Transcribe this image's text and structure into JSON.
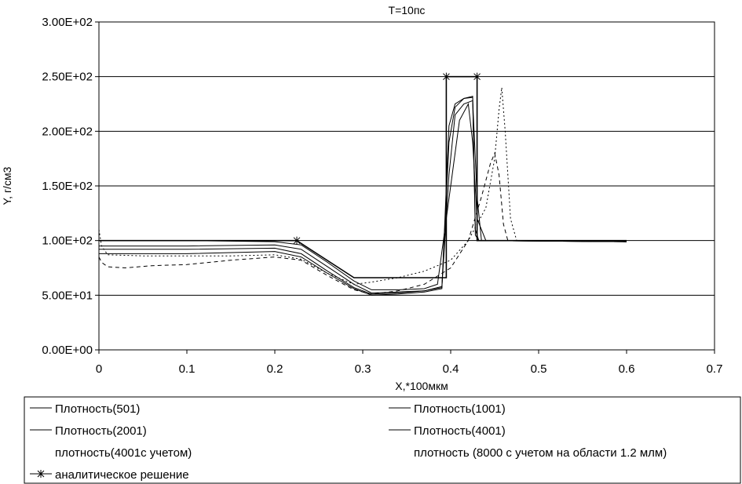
{
  "chart_data": {
    "type": "line",
    "title": "T=10пс",
    "xlabel": "X,*100мкм",
    "ylabel": "Y, г/см3",
    "xlim": [
      0,
      0.7
    ],
    "ylim": [
      0,
      300
    ],
    "x_ticks": [
      {
        "value": 0,
        "label": "0"
      },
      {
        "value": 0.1,
        "label": "0.1"
      },
      {
        "value": 0.2,
        "label": "0.2"
      },
      {
        "value": 0.3,
        "label": "0.3"
      },
      {
        "value": 0.4,
        "label": "0.4"
      },
      {
        "value": 0.5,
        "label": "0.5"
      },
      {
        "value": 0.6,
        "label": "0.6"
      },
      {
        "value": 0.7,
        "label": "0.7"
      }
    ],
    "y_ticks": [
      {
        "value": 0,
        "label": "0.00E+00"
      },
      {
        "value": 50,
        "label": "5.00E+01"
      },
      {
        "value": 100,
        "label": "1.00E+02"
      },
      {
        "value": 150,
        "label": "1.50E+02"
      },
      {
        "value": 200,
        "label": "2.00E+02"
      },
      {
        "value": 250,
        "label": "2.50E+02"
      },
      {
        "value": 300,
        "label": "3.00E+02"
      }
    ],
    "grid": "horizontal",
    "legend_position": "bottom",
    "series": [
      {
        "name": "Плотность(501)",
        "dash": "solid",
        "points": [
          [
            0,
            100
          ],
          [
            0.1,
            100
          ],
          [
            0.2,
            99
          ],
          [
            0.23,
            96
          ],
          [
            0.26,
            80
          ],
          [
            0.29,
            63
          ],
          [
            0.31,
            55
          ],
          [
            0.34,
            55
          ],
          [
            0.37,
            56
          ],
          [
            0.385,
            60
          ],
          [
            0.4,
            150
          ],
          [
            0.41,
            210
          ],
          [
            0.42,
            225
          ],
          [
            0.425,
            190
          ],
          [
            0.43,
            120
          ],
          [
            0.44,
            100
          ],
          [
            0.6,
            99
          ]
        ]
      },
      {
        "name": "Плотность(1001)",
        "dash": "solid",
        "points": [
          [
            0,
            95
          ],
          [
            0.1,
            95
          ],
          [
            0.2,
            96
          ],
          [
            0.23,
            92
          ],
          [
            0.26,
            76
          ],
          [
            0.29,
            60
          ],
          [
            0.31,
            52
          ],
          [
            0.34,
            53
          ],
          [
            0.37,
            54
          ],
          [
            0.39,
            58
          ],
          [
            0.398,
            160
          ],
          [
            0.405,
            215
          ],
          [
            0.415,
            225
          ],
          [
            0.425,
            228
          ],
          [
            0.43,
            140
          ],
          [
            0.435,
            100
          ],
          [
            0.6,
            99
          ]
        ]
      },
      {
        "name": "Плотность(2001)",
        "dash": "solid",
        "points": [
          [
            0,
            92
          ],
          [
            0.1,
            92
          ],
          [
            0.2,
            93
          ],
          [
            0.23,
            88
          ],
          [
            0.26,
            72
          ],
          [
            0.29,
            57
          ],
          [
            0.31,
            51
          ],
          [
            0.34,
            52
          ],
          [
            0.37,
            54
          ],
          [
            0.39,
            57
          ],
          [
            0.398,
            190
          ],
          [
            0.405,
            222
          ],
          [
            0.415,
            230
          ],
          [
            0.425,
            231
          ],
          [
            0.428,
            110
          ],
          [
            0.432,
            100
          ],
          [
            0.6,
            99
          ]
        ]
      },
      {
        "name": "Плотность(4001)",
        "dash": "solid",
        "points": [
          [
            0,
            88
          ],
          [
            0.1,
            88
          ],
          [
            0.2,
            90
          ],
          [
            0.23,
            85
          ],
          [
            0.26,
            70
          ],
          [
            0.29,
            56
          ],
          [
            0.31,
            50
          ],
          [
            0.34,
            51
          ],
          [
            0.37,
            53
          ],
          [
            0.39,
            56
          ],
          [
            0.398,
            205
          ],
          [
            0.405,
            225
          ],
          [
            0.415,
            230
          ],
          [
            0.425,
            232
          ],
          [
            0.428,
            105
          ],
          [
            0.432,
            100
          ],
          [
            0.6,
            99
          ]
        ]
      },
      {
        "name": "плотность(4001с учетом)",
        "dash": "5,4",
        "points": [
          [
            0,
            85
          ],
          [
            0.003,
            80
          ],
          [
            0.01,
            76
          ],
          [
            0.03,
            75
          ],
          [
            0.06,
            77
          ],
          [
            0.1,
            78
          ],
          [
            0.15,
            82
          ],
          [
            0.2,
            85
          ],
          [
            0.23,
            82
          ],
          [
            0.26,
            68
          ],
          [
            0.29,
            55
          ],
          [
            0.31,
            51
          ],
          [
            0.34,
            54
          ],
          [
            0.37,
            60
          ],
          [
            0.4,
            75
          ],
          [
            0.42,
            100
          ],
          [
            0.435,
            140
          ],
          [
            0.445,
            170
          ],
          [
            0.45,
            180
          ],
          [
            0.455,
            160
          ],
          [
            0.46,
            115
          ],
          [
            0.465,
            100
          ],
          [
            0.6,
            99
          ]
        ]
      },
      {
        "name": "плотность (8000 с учетом на области 1.2 млм)",
        "dash": "2,3",
        "points": [
          [
            0,
            110
          ],
          [
            0.003,
            95
          ],
          [
            0.01,
            87
          ],
          [
            0.05,
            86
          ],
          [
            0.1,
            86
          ],
          [
            0.15,
            86
          ],
          [
            0.2,
            87
          ],
          [
            0.23,
            83
          ],
          [
            0.26,
            70
          ],
          [
            0.29,
            60
          ],
          [
            0.31,
            62
          ],
          [
            0.34,
            66
          ],
          [
            0.37,
            72
          ],
          [
            0.4,
            82
          ],
          [
            0.42,
            100
          ],
          [
            0.44,
            130
          ],
          [
            0.45,
            175
          ],
          [
            0.455,
            220
          ],
          [
            0.458,
            240
          ],
          [
            0.462,
            200
          ],
          [
            0.468,
            120
          ],
          [
            0.475,
            100
          ],
          [
            0.6,
            99
          ]
        ]
      },
      {
        "name": "аналитическое решение",
        "dash": "solid",
        "markers": "cross",
        "points": [
          [
            0,
            100
          ],
          [
            0.225,
            100
          ],
          [
            0.29,
            66
          ],
          [
            0.395,
            66
          ],
          [
            0.395,
            250
          ],
          [
            0.43,
            250
          ],
          [
            0.43,
            100
          ],
          [
            0.6,
            100
          ]
        ],
        "marker_points": [
          [
            0.225,
            100
          ],
          [
            0.395,
            250
          ],
          [
            0.43,
            250
          ]
        ]
      }
    ]
  }
}
